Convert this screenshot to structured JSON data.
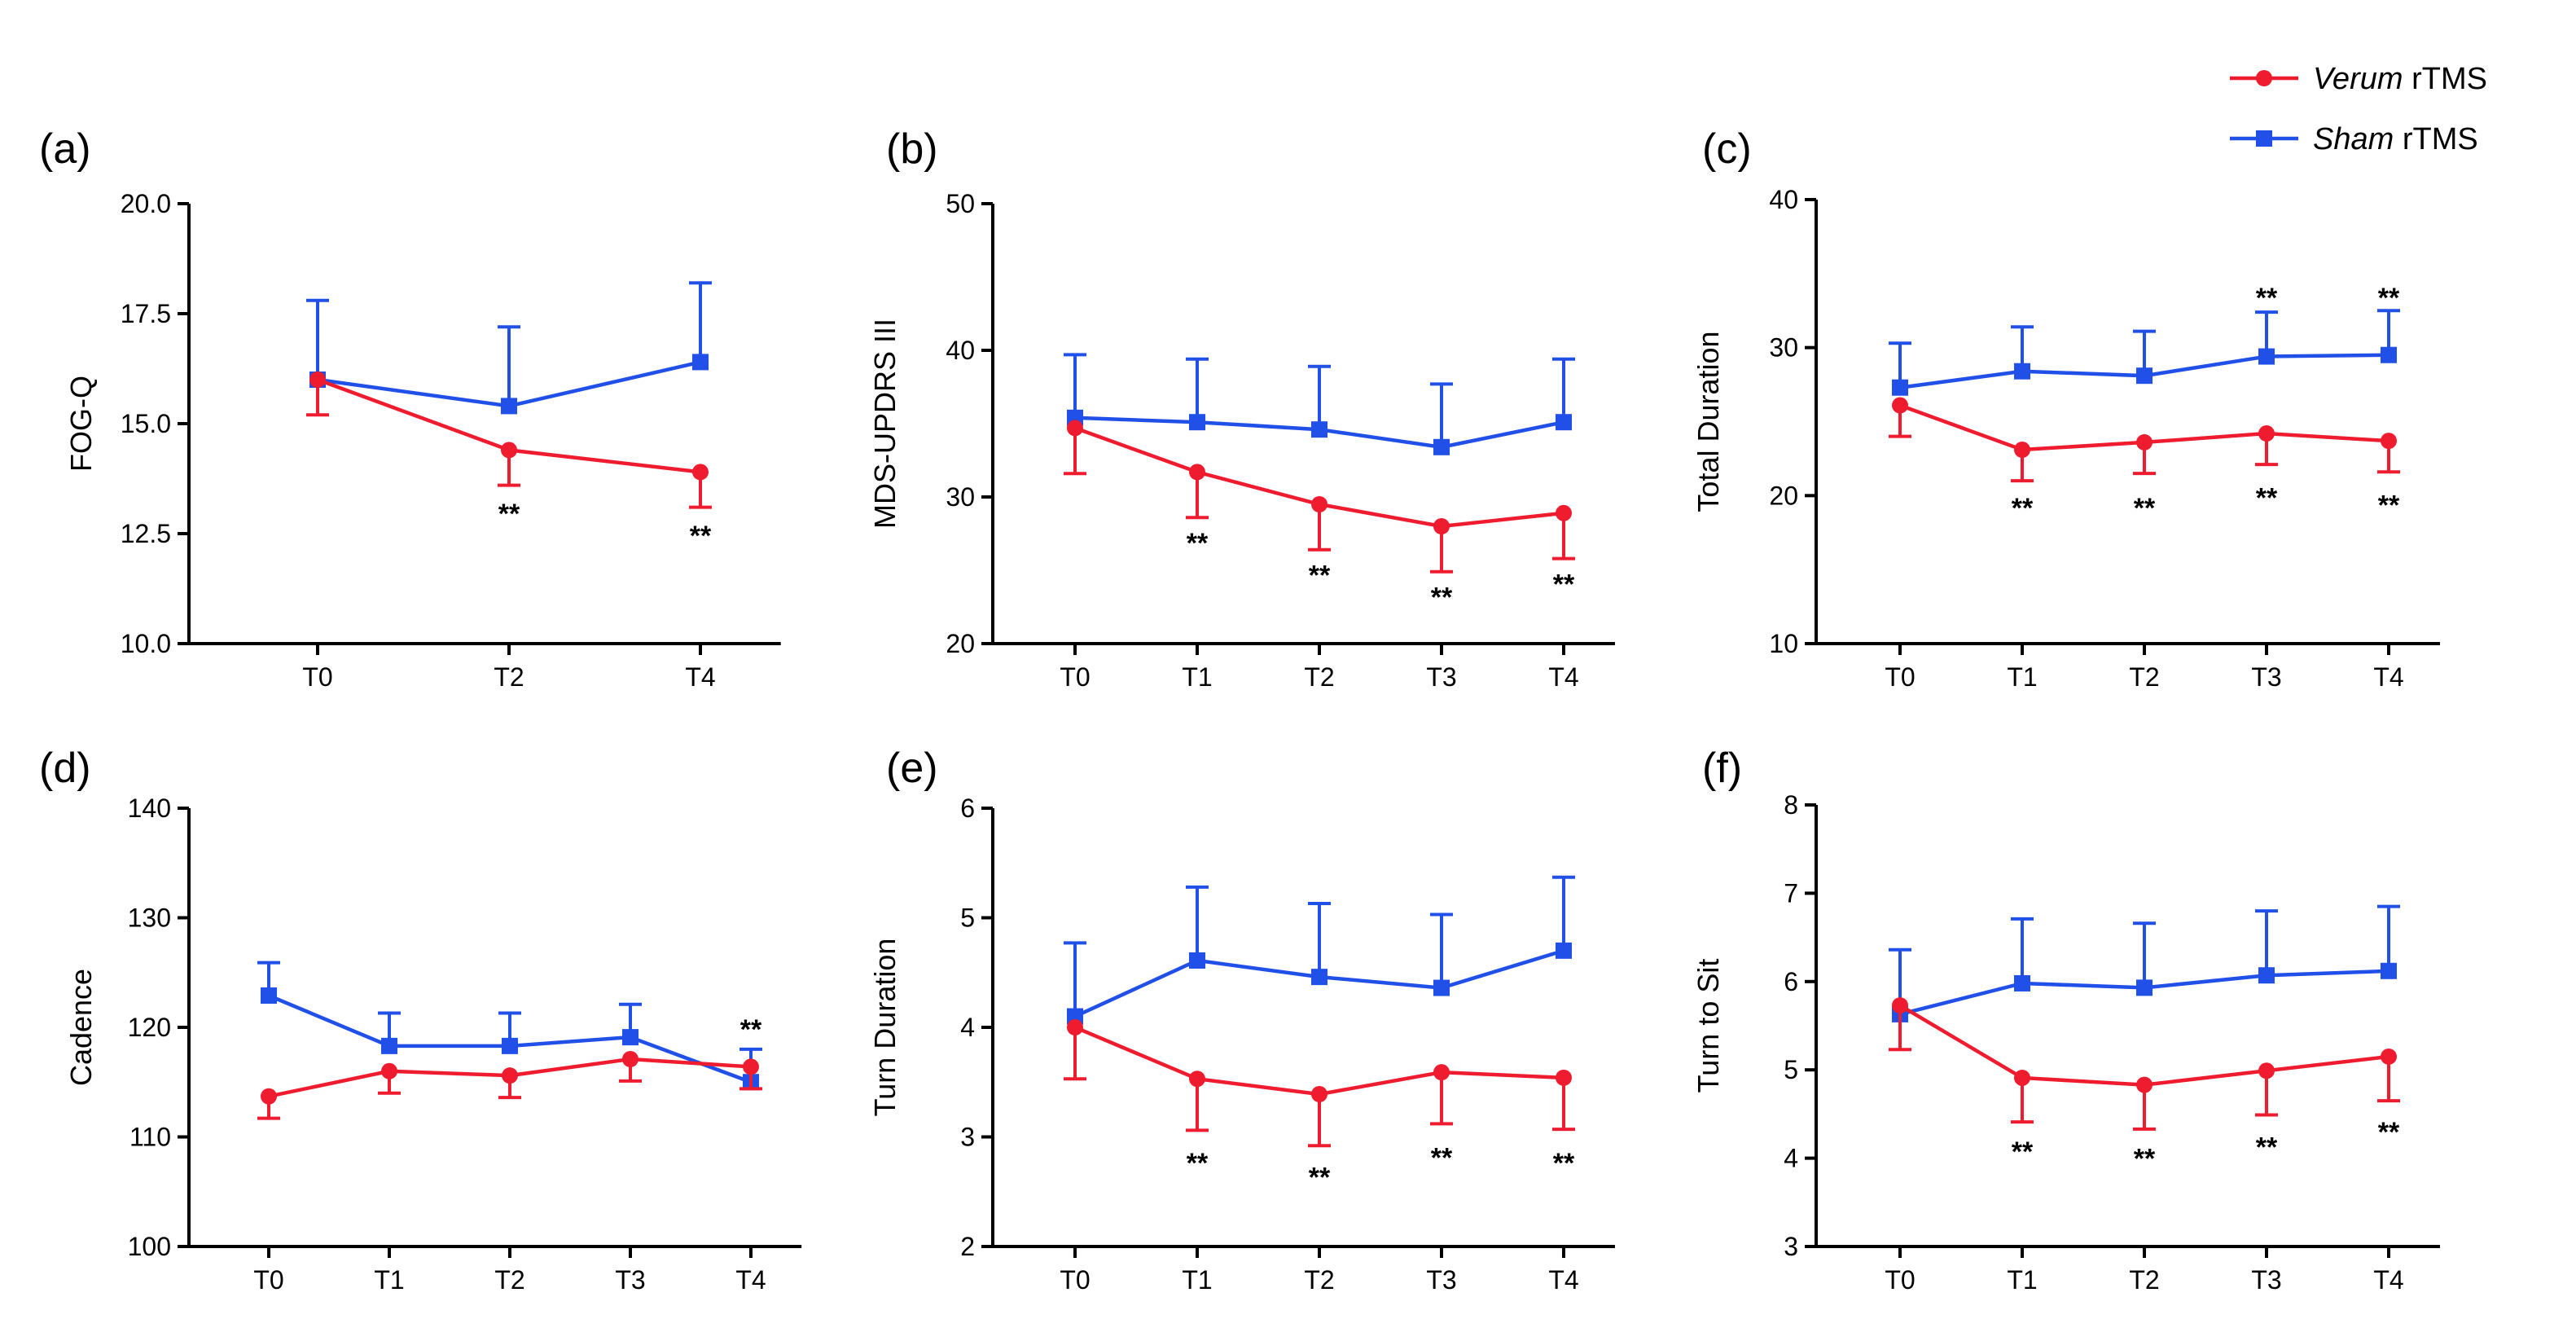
{
  "legend": {
    "position": "top-right",
    "entries": [
      {
        "italic": "Verum",
        "rest": " rTMS",
        "color": "#ee1c2e",
        "marker": "circle"
      },
      {
        "italic": "Sham",
        "rest": " rTMS",
        "color": "#2050e8",
        "marker": "square"
      }
    ]
  },
  "chart_data": [
    {
      "type": "line",
      "panel": "(a)",
      "ylabel": "FOG-Q",
      "categories": [
        "T0",
        "T2",
        "T4"
      ],
      "ylim": [
        10,
        20
      ],
      "yticks": [
        "10.0",
        "12.5",
        "15.0",
        "17.5",
        "20.0"
      ],
      "series": [
        {
          "group": "verum",
          "values": [
            16.0,
            14.4,
            13.9
          ],
          "err": [
            0.8,
            0.8,
            0.8
          ],
          "err_dir": "down"
        },
        {
          "group": "sham",
          "values": [
            16.0,
            15.4,
            16.4
          ],
          "err": [
            1.8,
            1.8,
            1.8
          ],
          "err_dir": "up"
        }
      ],
      "annotations": [
        {
          "x": "T2",
          "y": 13.0,
          "text": "**"
        },
        {
          "x": "T4",
          "y": 12.5,
          "text": "**"
        }
      ]
    },
    {
      "type": "line",
      "panel": "(b)",
      "ylabel": "MDS-UPDRS III",
      "categories": [
        "T0",
        "T1",
        "T2",
        "T3",
        "T4"
      ],
      "ylim": [
        20,
        50
      ],
      "yticks": [
        "20",
        "30",
        "40",
        "50"
      ],
      "series": [
        {
          "group": "verum",
          "values": [
            34.7,
            31.7,
            29.5,
            28.0,
            28.9
          ],
          "err": [
            3.1,
            3.1,
            3.1,
            3.1,
            3.1
          ],
          "err_dir": "down"
        },
        {
          "group": "sham",
          "values": [
            35.4,
            35.1,
            34.6,
            33.4,
            35.1
          ],
          "err": [
            4.3,
            4.3,
            4.3,
            4.3,
            4.3
          ],
          "err_dir": "up"
        }
      ],
      "annotations": [
        {
          "x": "T1",
          "y": 27.0,
          "text": "**"
        },
        {
          "x": "T2",
          "y": 24.8,
          "text": "**"
        },
        {
          "x": "T3",
          "y": 23.3,
          "text": "**"
        },
        {
          "x": "T4",
          "y": 24.2,
          "text": "**"
        }
      ]
    },
    {
      "type": "line",
      "panel": "(c)",
      "ylabel": "Total Duration",
      "categories": [
        "T0",
        "T1",
        "T2",
        "T3",
        "T4"
      ],
      "ylim": [
        10,
        40
      ],
      "yticks": [
        "10",
        "20",
        "30",
        "40"
      ],
      "series": [
        {
          "group": "verum",
          "values": [
            26.1,
            23.1,
            23.6,
            24.2,
            23.7
          ],
          "err": [
            2.1,
            2.1,
            2.1,
            2.1,
            2.1
          ],
          "err_dir": "down"
        },
        {
          "group": "sham",
          "values": [
            27.3,
            28.4,
            28.1,
            29.4,
            29.5
          ],
          "err": [
            3.0,
            3.0,
            3.0,
            3.0,
            3.0
          ],
          "err_dir": "up"
        }
      ],
      "annotations": [
        {
          "x": "T1",
          "y": 19.3,
          "text": "**"
        },
        {
          "x": "T2",
          "y": 19.3,
          "text": "**"
        },
        {
          "x": "T3",
          "y": 20.0,
          "text": "**"
        },
        {
          "x": "T4",
          "y": 19.5,
          "text": "**"
        },
        {
          "x": "T3",
          "y": 33.5,
          "text": "**"
        },
        {
          "x": "T4",
          "y": 33.5,
          "text": "**"
        }
      ]
    },
    {
      "type": "line",
      "panel": "(d)",
      "ylabel": "Cadence",
      "categories": [
        "T0",
        "T1",
        "T2",
        "T3",
        "T4"
      ],
      "ylim": [
        100,
        140
      ],
      "yticks": [
        "100",
        "110",
        "120",
        "130",
        "140"
      ],
      "series": [
        {
          "group": "verum",
          "values": [
            113.7,
            116.0,
            115.6,
            117.1,
            116.4
          ],
          "err": [
            2.0,
            2.0,
            2.0,
            2.0,
            2.0
          ],
          "err_dir": "down"
        },
        {
          "group": "sham",
          "values": [
            122.9,
            118.3,
            118.3,
            119.1,
            115.0
          ],
          "err": [
            3.0,
            3.0,
            3.0,
            3.0,
            3.0
          ],
          "err_dir": "up"
        }
      ],
      "annotations": [
        {
          "x": "T4",
          "y": 120.0,
          "text": "**"
        }
      ]
    },
    {
      "type": "line",
      "panel": "(e)",
      "ylabel": "Turn Duration",
      "categories": [
        "T0",
        "T1",
        "T2",
        "T3",
        "T4"
      ],
      "ylim": [
        2,
        6
      ],
      "yticks": [
        "2",
        "3",
        "4",
        "5",
        "6"
      ],
      "series": [
        {
          "group": "verum",
          "values": [
            4.0,
            3.53,
            3.39,
            3.59,
            3.54
          ],
          "err": [
            0.47,
            0.47,
            0.47,
            0.47,
            0.47
          ],
          "err_dir": "down"
        },
        {
          "group": "sham",
          "values": [
            4.1,
            4.61,
            4.46,
            4.36,
            4.7
          ],
          "err": [
            0.67,
            0.67,
            0.67,
            0.67,
            0.67
          ],
          "err_dir": "up"
        }
      ],
      "annotations": [
        {
          "x": "T1",
          "y": 2.78,
          "text": "**"
        },
        {
          "x": "T2",
          "y": 2.65,
          "text": "**"
        },
        {
          "x": "T3",
          "y": 2.83,
          "text": "**"
        },
        {
          "x": "T4",
          "y": 2.78,
          "text": "**"
        }
      ]
    },
    {
      "type": "line",
      "panel": "(f)",
      "ylabel": "Turn to Sit",
      "categories": [
        "T0",
        "T1",
        "T2",
        "T3",
        "T4"
      ],
      "ylim": [
        3,
        8
      ],
      "yticks": [
        "3",
        "4",
        "5",
        "6",
        "7",
        "8"
      ],
      "series": [
        {
          "group": "verum",
          "values": [
            5.73,
            4.91,
            4.83,
            4.99,
            5.15
          ],
          "err": [
            0.5,
            0.5,
            0.5,
            0.5,
            0.5
          ],
          "err_dir": "down"
        },
        {
          "group": "sham",
          "values": [
            5.63,
            5.98,
            5.93,
            6.07,
            6.12
          ],
          "err": [
            0.73,
            0.73,
            0.73,
            0.73,
            0.73
          ],
          "err_dir": "up"
        }
      ],
      "annotations": [
        {
          "x": "T1",
          "y": 4.1,
          "text": "**"
        },
        {
          "x": "T2",
          "y": 4.02,
          "text": "**"
        },
        {
          "x": "T3",
          "y": 4.15,
          "text": "**"
        },
        {
          "x": "T4",
          "y": 4.32,
          "text": "**"
        }
      ]
    }
  ]
}
